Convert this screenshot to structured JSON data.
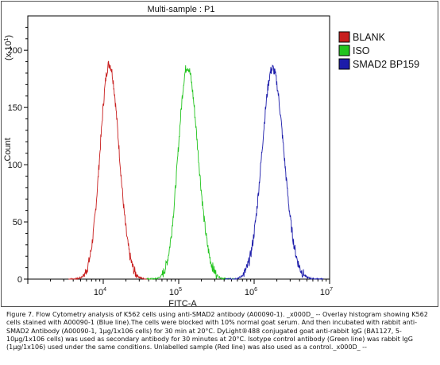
{
  "chart_data": {
    "type": "line",
    "title": "Multi-sample : P1",
    "ylabel": "Count",
    "xlabel": "FITC-A",
    "y_scale_label": "(x 10^1)",
    "y_scale_base": "(x 10",
    "y_scale_exp": "1",
    "y_scale_close": ")",
    "x_scale": "log",
    "xlim": [
      1000,
      10000000
    ],
    "ylim": [
      0,
      230
    ],
    "y_ticks": [
      "0",
      "50",
      "100",
      "150",
      "200"
    ],
    "x_ticks": [
      {
        "base": "10",
        "exp": "4",
        "value": 10000
      },
      {
        "base": "10",
        "exp": "5",
        "value": 100000
      },
      {
        "base": "10",
        "exp": "6",
        "value": 1000000
      },
      {
        "base": "10",
        "exp": "7",
        "value": 10000000
      }
    ],
    "series": [
      {
        "name": "BLANK",
        "color": "#c81e1e",
        "peak_x": 12000,
        "peak_y": 188,
        "sigma_left": 0.12,
        "sigma_right": 0.13
      },
      {
        "name": "ISO",
        "color": "#22c41e",
        "peak_x": 130000,
        "peak_y": 186,
        "sigma_left": 0.12,
        "sigma_right": 0.14
      },
      {
        "name": "SMAD2 BP159",
        "color": "#1c1caa",
        "peak_x": 1750000,
        "peak_y": 184,
        "sigma_left": 0.14,
        "sigma_right": 0.15
      }
    ]
  },
  "caption": "Figure 7. Flow Cytometry analysis of K562 cells using anti-SMAD2 antibody (A00090-1). _x000D_ -- Overlay histogram showing K562 cells stained with A00090-1 (Blue line).The cells were blocked with 10% normal goat serum. And then incubated with rabbit anti-SMAD2 Antibody (A00090-1, 1μg/1x106 cells) for 30 min at 20°C. DyLight®488 conjugated goat anti-rabbit IgG (BA1127, 5-10μg/1x106 cells) was used as secondary antibody for 30 minutes at 20°C. Isotype control antibody (Green line) was rabbit IgG (1μg/1x106) used under the same conditions. Unlabelled sample (Red line) was also used as a control._x000D_ --"
}
